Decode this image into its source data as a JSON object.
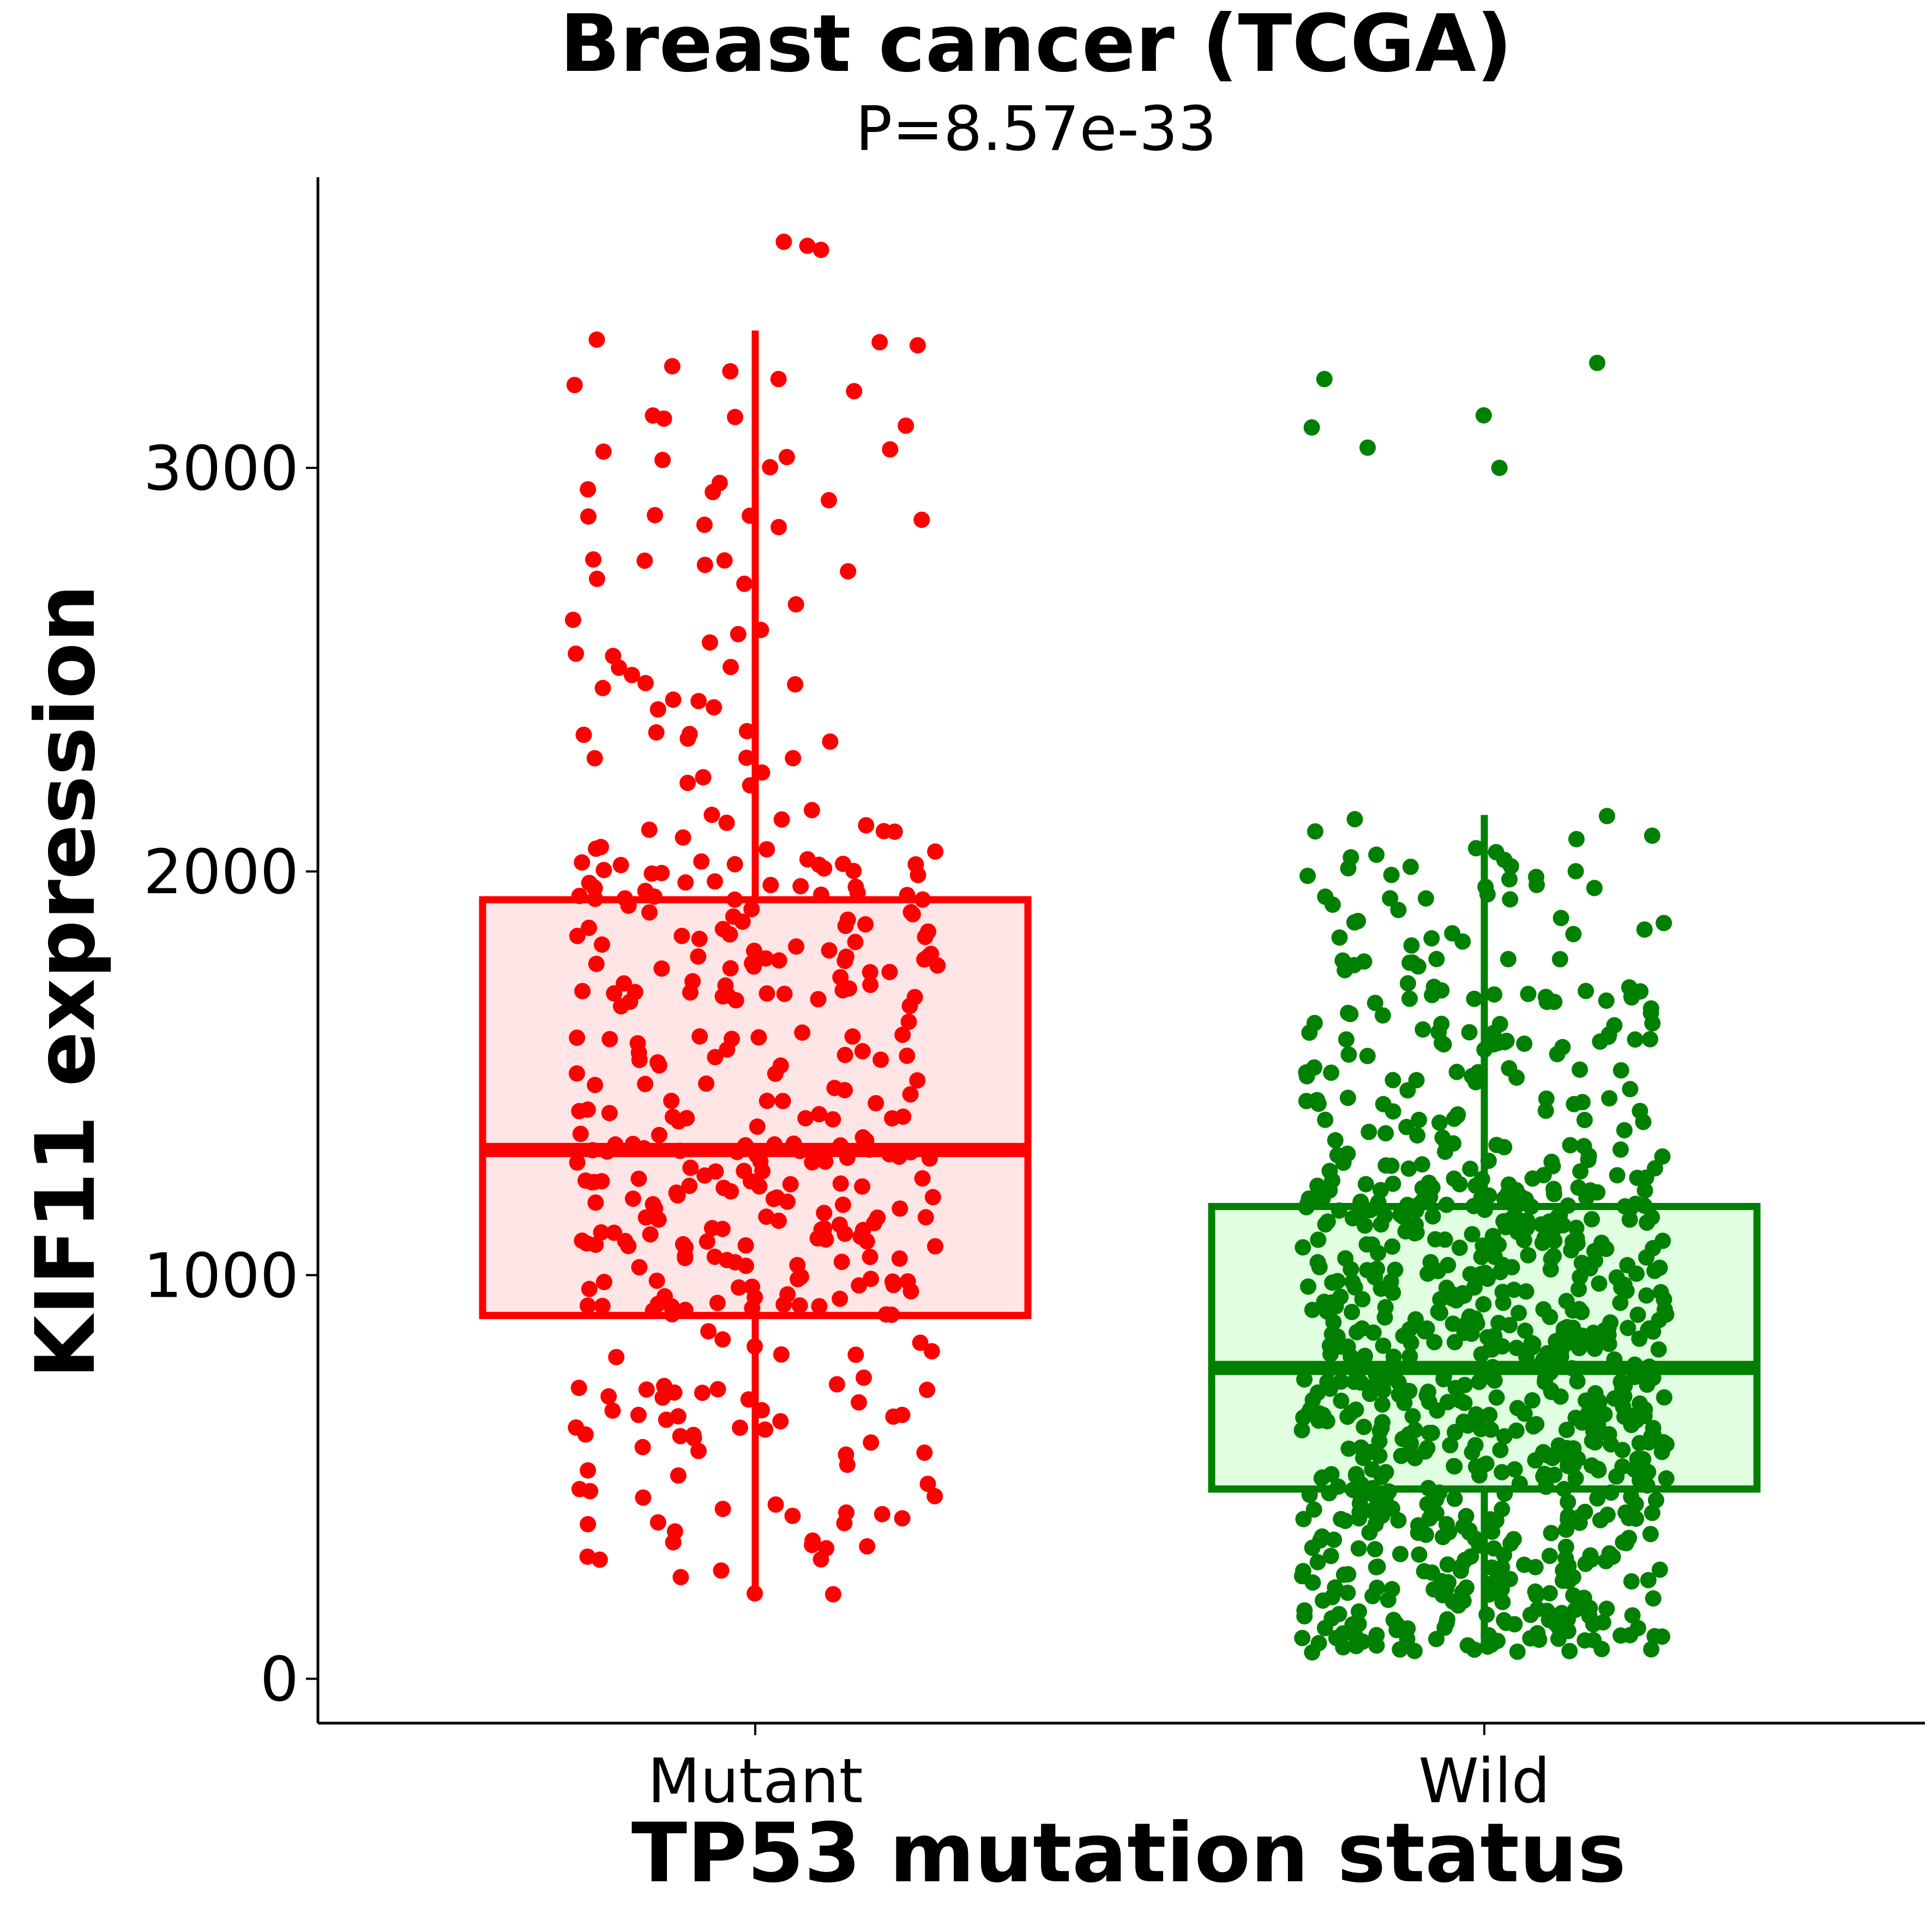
{
  "chart_data": {
    "type": "box",
    "title": "Breast cancer (TCGA)",
    "subtitle": "P=8.57e-33",
    "xlabel": "TP53 mutation status",
    "ylabel": "KIF11 expression",
    "categories": [
      "Mutant",
      "Wild"
    ],
    "ylim": [
      -110,
      3720
    ],
    "yticks": [
      0,
      1000,
      2000,
      3000
    ],
    "y_tick_labels": [
      "0",
      "1000",
      "2000",
      "3000"
    ],
    "grid": false,
    "legend": "none",
    "groups": [
      {
        "category": "Mutant",
        "color": "#ff0000",
        "fill": "#ffe5e5",
        "box": {
          "whisker_low": 200,
          "q1": 900,
          "median": 1310,
          "q3": 1930,
          "whisker_high": 3340
        },
        "point_count": 420,
        "points_y_range": [
          190,
          3560
        ],
        "outliers_high": [
          3560,
          3550,
          3540
        ]
      },
      {
        "category": "Wild",
        "color": "#008000",
        "fill": "#e0ffe0",
        "box": {
          "whisker_low": 65,
          "q1": 470,
          "median": 770,
          "q3": 1170,
          "whisker_high": 2140
        },
        "point_count": 900,
        "points_y_range": [
          60,
          3260
        ],
        "outliers_high": [
          3260,
          3220,
          3130,
          3100,
          3050,
          3000
        ]
      }
    ]
  }
}
